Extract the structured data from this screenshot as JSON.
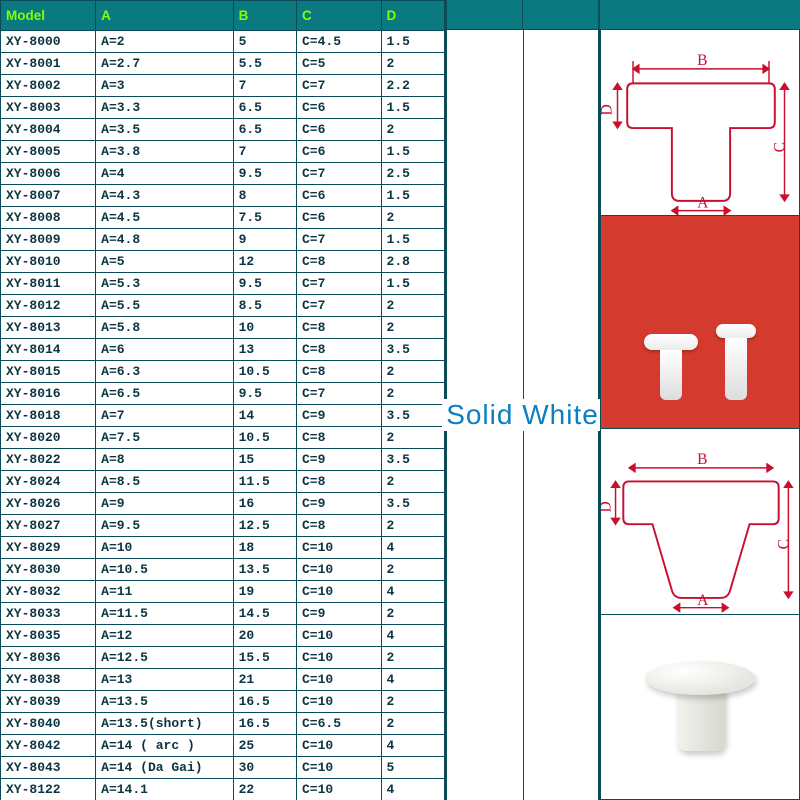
{
  "colors": {
    "header_bg": "#0b7a80",
    "header_text": "#7fff00",
    "border": "#0a4c5a",
    "cell_text": "#0b3540",
    "label_text": "#0b7fbf",
    "panel_red": "#d43b2e",
    "diagram_stroke": "#c8102e"
  },
  "label": "Solid White",
  "columns": [
    "Model",
    "A",
    "B",
    "C",
    "D"
  ],
  "rows": [
    [
      "XY-8000",
      "A=2",
      "5",
      "C=4.5",
      "1.5"
    ],
    [
      "XY-8001",
      "A=2.7",
      "5.5",
      "C=5",
      "2"
    ],
    [
      "XY-8002",
      "A=3",
      "7",
      "C=7",
      "2.2"
    ],
    [
      "XY-8003",
      "A=3.3",
      "6.5",
      "C=6",
      "1.5"
    ],
    [
      "XY-8004",
      "A=3.5",
      "6.5",
      "C=6",
      "2"
    ],
    [
      "XY-8005",
      "A=3.8",
      "7",
      "C=6",
      "1.5"
    ],
    [
      "XY-8006",
      "A=4",
      "9.5",
      "C=7",
      "2.5"
    ],
    [
      "XY-8007",
      "A=4.3",
      "8",
      "C=6",
      "1.5"
    ],
    [
      "XY-8008",
      "A=4.5",
      "7.5",
      "C=6",
      "2"
    ],
    [
      "XY-8009",
      "A=4.8",
      "9",
      "C=7",
      "1.5"
    ],
    [
      "XY-8010",
      "A=5",
      "12",
      "C=8",
      "2.8"
    ],
    [
      "XY-8011",
      "A=5.3",
      "9.5",
      "C=7",
      "1.5"
    ],
    [
      "XY-8012",
      "A=5.5",
      "8.5",
      "C=7",
      "2"
    ],
    [
      "XY-8013",
      "A=5.8",
      "10",
      "C=8",
      "2"
    ],
    [
      "XY-8014",
      "A=6",
      "13",
      "C=8",
      "3.5"
    ],
    [
      "XY-8015",
      "A=6.3",
      "10.5",
      "C=8",
      "2"
    ],
    [
      "XY-8016",
      "A=6.5",
      "9.5",
      "C=7",
      "2"
    ],
    [
      "XY-8018",
      "A=7",
      "14",
      "C=9",
      "3.5"
    ],
    [
      "XY-8020",
      "A=7.5",
      "10.5",
      "C=8",
      "2"
    ],
    [
      "XY-8022",
      "A=8",
      "15",
      "C=9",
      "3.5"
    ],
    [
      "XY-8024",
      "A=8.5",
      "11.5",
      "C=8",
      "2"
    ],
    [
      "XY-8026",
      "A=9",
      "16",
      "C=9",
      "3.5"
    ],
    [
      "XY-8027",
      "A=9.5",
      "12.5",
      "C=8",
      "2"
    ],
    [
      "XY-8029",
      "A=10",
      "18",
      "C=10",
      "4"
    ],
    [
      "XY-8030",
      "A=10.5",
      "13.5",
      "C=10",
      "2"
    ],
    [
      "XY-8032",
      "A=11",
      "19",
      "C=10",
      "4"
    ],
    [
      "XY-8033",
      "A=11.5",
      "14.5",
      "C=9",
      "2"
    ],
    [
      "XY-8035",
      "A=12",
      "20",
      "C=10",
      "4"
    ],
    [
      "XY-8036",
      "A=12.5",
      "15.5",
      "C=10",
      "2"
    ],
    [
      "XY-8038",
      "A=13",
      "21",
      "C=10",
      "4"
    ],
    [
      "XY-8039",
      "A=13.5",
      "16.5",
      "C=10",
      "2"
    ],
    [
      "XY-8040",
      "A=13.5(short)",
      "16.5",
      "C=6.5",
      "2"
    ],
    [
      "XY-8042",
      "A=14 ( arc )",
      "25",
      "C=10",
      "4"
    ],
    [
      "XY-8043",
      "A=14 (Da Gai)",
      "30",
      "C=10",
      "5"
    ],
    [
      "XY-8122",
      "A=14.1",
      "22",
      "C=10",
      "4"
    ]
  ],
  "diagram_labels": {
    "A": "A",
    "B": "B",
    "C": "C",
    "D": "D"
  }
}
